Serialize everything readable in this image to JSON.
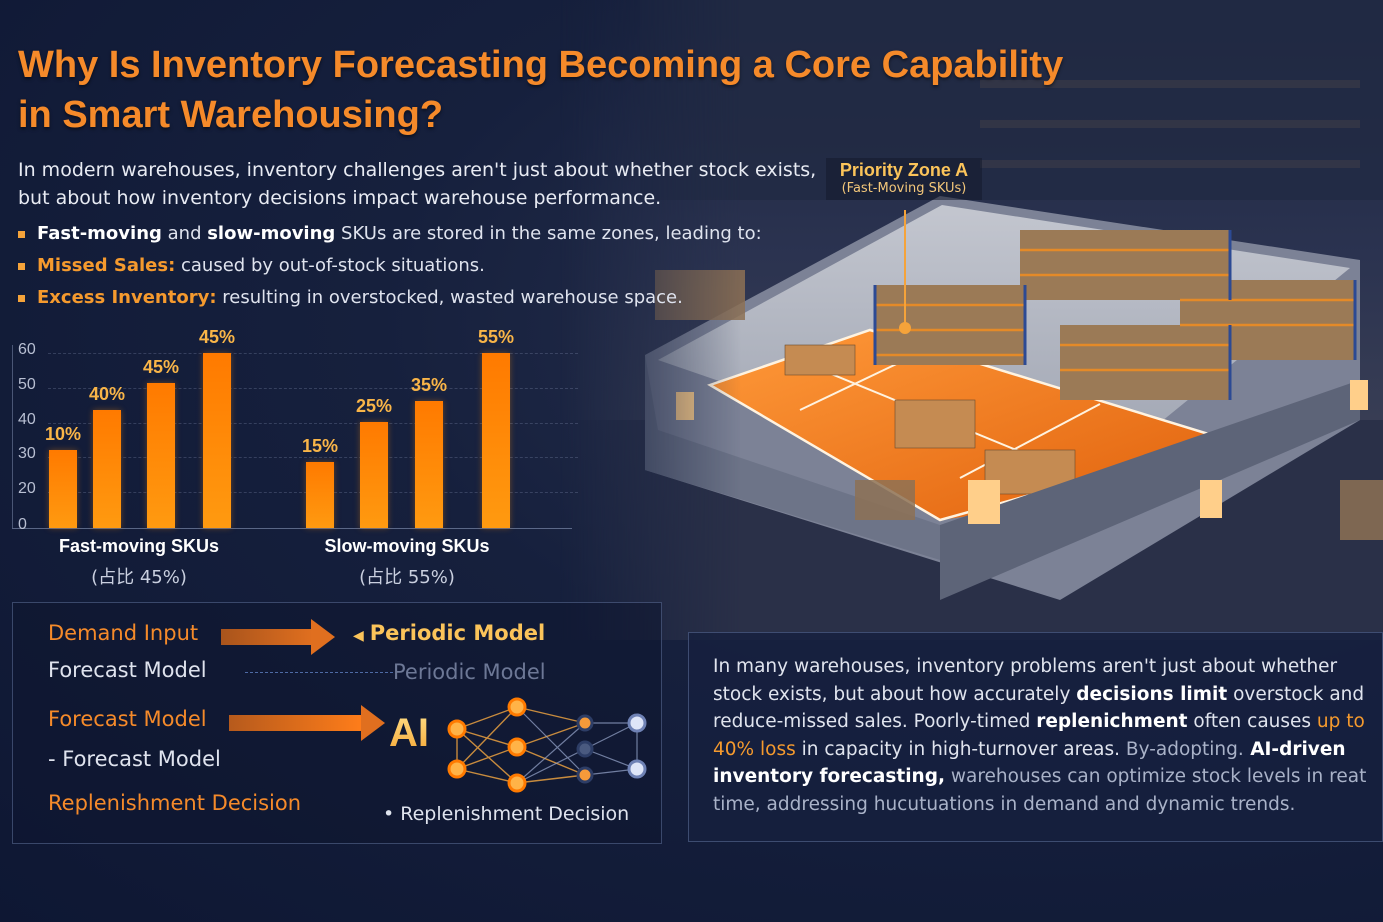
{
  "title": {
    "line1": "Why Is Inventory Forecasting Becoming a Core Capability",
    "line2": "in Smart Warehousing?"
  },
  "intro": {
    "text": "In modern warehouses, inventory challenges aren't just about whether stock exists, but about how inventory decisions impact warehouse performance."
  },
  "bullets": [
    {
      "bold1": "Fast-moving",
      "mid": " and ",
      "bold2": "slow-moving",
      "rest": " SKUs are stored in the same zones, leading to:"
    },
    {
      "highlight": "Missed Sales:",
      "rest": " caused by out-of-stock situations."
    },
    {
      "highlight": "Excess Inventory:",
      "rest": " resulting in overstocked, wasted warehouse space."
    }
  ],
  "callout": {
    "title": "Priority Zone A",
    "subtitle": "(Fast-Moving SKUs)"
  },
  "chart_data": {
    "type": "bar",
    "title": "",
    "xlabel": "",
    "ylabel": "",
    "ylim": [
      0,
      60
    ],
    "yticks": [
      0,
      20,
      30,
      40,
      50,
      60
    ],
    "grid": true,
    "legend": "none",
    "groups": [
      {
        "name": "Fast-moving SKUs",
        "subtitle": "(占比 45%)",
        "bar_labels": [
          "10%",
          "40%",
          "45%",
          "45%"
        ],
        "values": [
          26,
          39,
          48,
          58
        ]
      },
      {
        "name": "Slow-moving SKUs",
        "subtitle": "(占比 55%)",
        "bar_labels": [
          "15%",
          "25%",
          "35%",
          "55%"
        ],
        "values": [
          22,
          35,
          42,
          58
        ]
      }
    ],
    "colors": {
      "bar": "#ff8a00",
      "label": "#f9b548"
    }
  },
  "flow": {
    "demand_input": "Demand Input",
    "periodic_model": "Periodic Model",
    "forecast_model_plain": "Forecast Model",
    "periodic_model_faded": "Periodic Model",
    "forecast_model": "Forecast Model",
    "ai": "AI",
    "forecast_model_sub": "- Forecast Model",
    "replenishment": "Replenishment Decision",
    "replenishment_sub": "• Replenishment Decision"
  },
  "panel": {
    "s1": "In many warehouses, inventory problems aren't just about whether stock exists, but about how accurately ",
    "b1": "decisions limit",
    "s2": " overstock and reduce-missed sales. Poorly-timed ",
    "b2": "replenichment",
    "s3": " often causes ",
    "h1": "up to 40% loss",
    "s4": " in capacity in high-turnover areas. ",
    "d1": "By-adopting.",
    "b3": " AI-driven inventory forecasting,",
    "s5": " warehouses can optimize stock levels in reat time, addressing hucutuations in demand and dynamic trends."
  },
  "colors": {
    "accent": "#f58a2a",
    "gold": "#fbc45a",
    "background": "#16203d"
  }
}
